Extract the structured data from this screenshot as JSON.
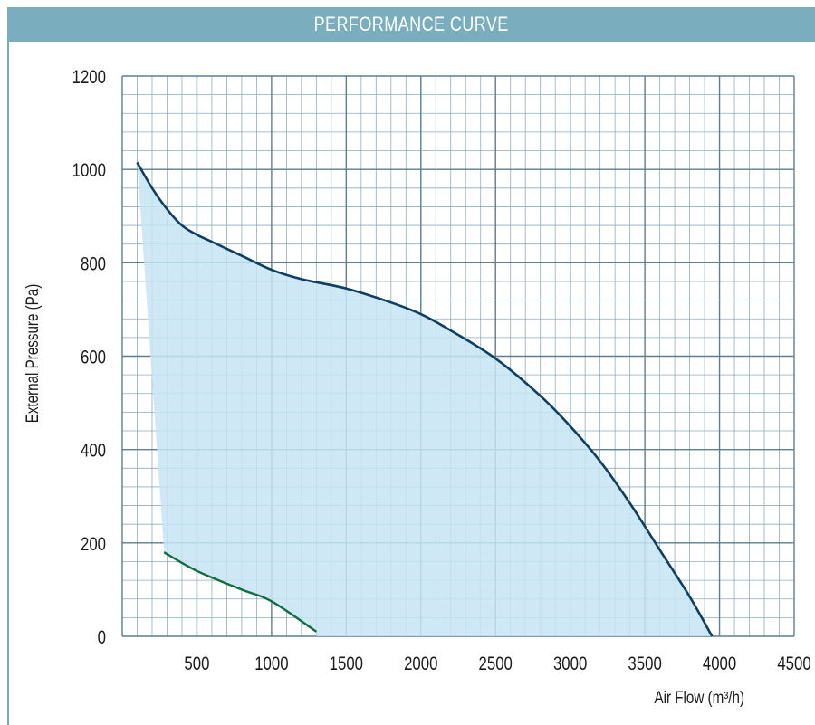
{
  "header": {
    "title": "PERFORMANCE CURVE"
  },
  "colors": {
    "header": "#7aaebe",
    "grid": "#8eadbd",
    "fill": "#c5e5f3",
    "main_curve": "#0d3e63",
    "min_curve": "#0f6e3c"
  },
  "chart_data": {
    "type": "area",
    "title": "PERFORMANCE CURVE",
    "xlabel": "Air Flow (m³/h)",
    "ylabel": "External Pressure (Pa)",
    "xlim": [
      0,
      4500
    ],
    "ylim": [
      0,
      1200
    ],
    "x_ticks": [
      500,
      1000,
      1500,
      2000,
      2500,
      3000,
      3500,
      4000,
      4500
    ],
    "y_ticks": [
      0,
      200,
      400,
      600,
      800,
      1000,
      1200
    ],
    "grid": true,
    "operating_area": {
      "upper_curve": [
        [
          100,
          1015
        ],
        [
          200,
          960
        ],
        [
          300,
          915
        ],
        [
          400,
          880
        ],
        [
          500,
          860
        ],
        [
          600,
          845
        ],
        [
          800,
          815
        ],
        [
          1000,
          785
        ],
        [
          1200,
          765
        ],
        [
          1500,
          745
        ],
        [
          1800,
          715
        ],
        [
          2000,
          690
        ],
        [
          2200,
          655
        ],
        [
          2500,
          595
        ],
        [
          2800,
          515
        ],
        [
          3000,
          450
        ],
        [
          3200,
          375
        ],
        [
          3400,
          285
        ],
        [
          3600,
          185
        ],
        [
          3800,
          85
        ],
        [
          3950,
          0
        ]
      ],
      "lower_curve": [
        [
          280,
          180
        ],
        [
          500,
          140
        ],
        [
          800,
          100
        ],
        [
          1000,
          75
        ],
        [
          1300,
          10
        ]
      ]
    }
  }
}
